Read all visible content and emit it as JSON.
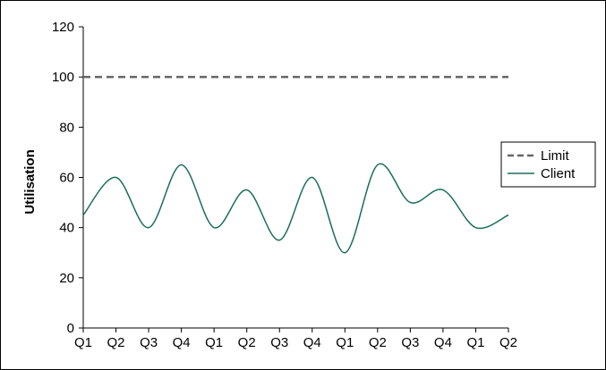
{
  "chart_data": {
    "type": "line",
    "title": "",
    "xlabel": "",
    "ylabel": "Utilisation",
    "ylim": [
      0,
      120
    ],
    "yticks": [
      0,
      20,
      40,
      60,
      80,
      100,
      120
    ],
    "categories": [
      "Q1",
      "Q2",
      "Q3",
      "Q4",
      "Q1",
      "Q2",
      "Q3",
      "Q4",
      "Q1",
      "Q2",
      "Q3",
      "Q4",
      "Q1",
      "Q2"
    ],
    "grid": false,
    "legend_position": "right",
    "series": [
      {
        "name": "Limit",
        "style": "dashed",
        "color": "#666666",
        "values": [
          100,
          100,
          100,
          100,
          100,
          100,
          100,
          100,
          100,
          100,
          100,
          100,
          100,
          100
        ]
      },
      {
        "name": "Client",
        "style": "solid",
        "color": "#1a6e5c",
        "smooth": true,
        "values": [
          45,
          60,
          40,
          65,
          40,
          55,
          35,
          60,
          30,
          65,
          50,
          55,
          40,
          45
        ]
      }
    ]
  }
}
